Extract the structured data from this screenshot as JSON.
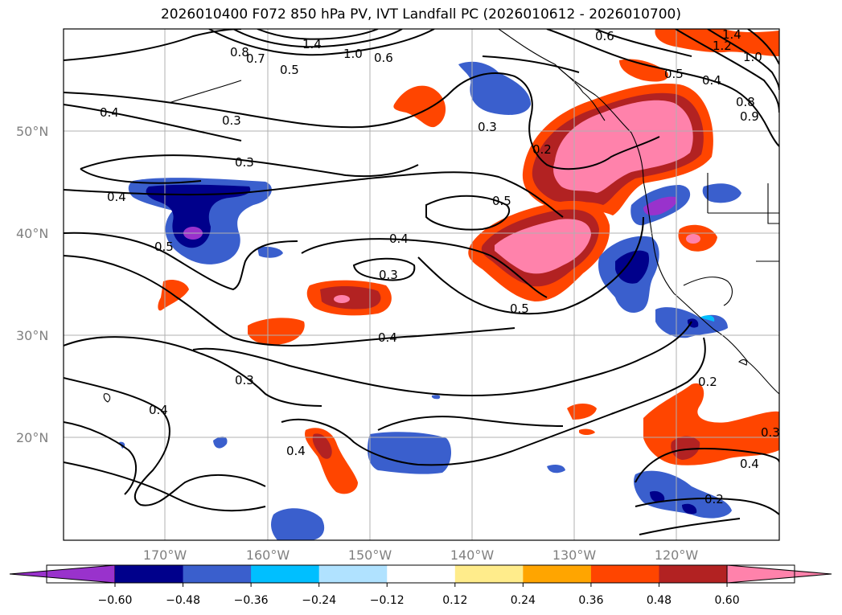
{
  "title": "2026010400 F072 850 hPa PV, IVT Landfall PC (2026010612 - 2026010700)",
  "lat_labels": [
    "50°N",
    "40°N",
    "30°N",
    "20°N"
  ],
  "lon_labels": [
    "170°W",
    "160°W",
    "150°W",
    "140°W",
    "130°W",
    "120°W"
  ],
  "contour_labels": [
    "1.4",
    "1.0",
    "0.6",
    "0.8",
    "0.7",
    "0.5",
    "1.4",
    "1.2",
    "1.0",
    "0.5",
    "0.4",
    "0.8",
    "0.9",
    "0.4",
    "0.3",
    "0.3",
    "0.2",
    "0.3",
    "0.4",
    "0.5",
    "0.5",
    "0.4",
    "0.3",
    "0.5",
    "0.4",
    "0.3",
    "0.4",
    "0.4",
    "0.2",
    "0.3",
    "0.4",
    "0.2",
    "0.6"
  ],
  "colorbar": {
    "colors": [
      "#9932cc",
      "#00008b",
      "#3a5fcd",
      "#00bfff",
      "#b0e2ff",
      "#ffffff",
      "#ffec8b",
      "#ffa500",
      "#ff4500",
      "#b22222",
      "#ff82ab"
    ],
    "tick_labels": [
      "−0.60",
      "−0.48",
      "−0.36",
      "−0.24",
      "−0.12",
      "0.12",
      "0.24",
      "0.36",
      "0.48",
      "0.60"
    ]
  },
  "map_colors": {
    "pink": "#ff82ab",
    "red": "#b22222",
    "orange_red": "#ff4500",
    "orange": "#ffa500",
    "yellow": "#ffec8b",
    "royal_blue": "#3a5fcd",
    "navy": "#00008b",
    "deep_sky": "#00bfff",
    "light_sky": "#b0e2ff",
    "purple": "#9932cc"
  }
}
